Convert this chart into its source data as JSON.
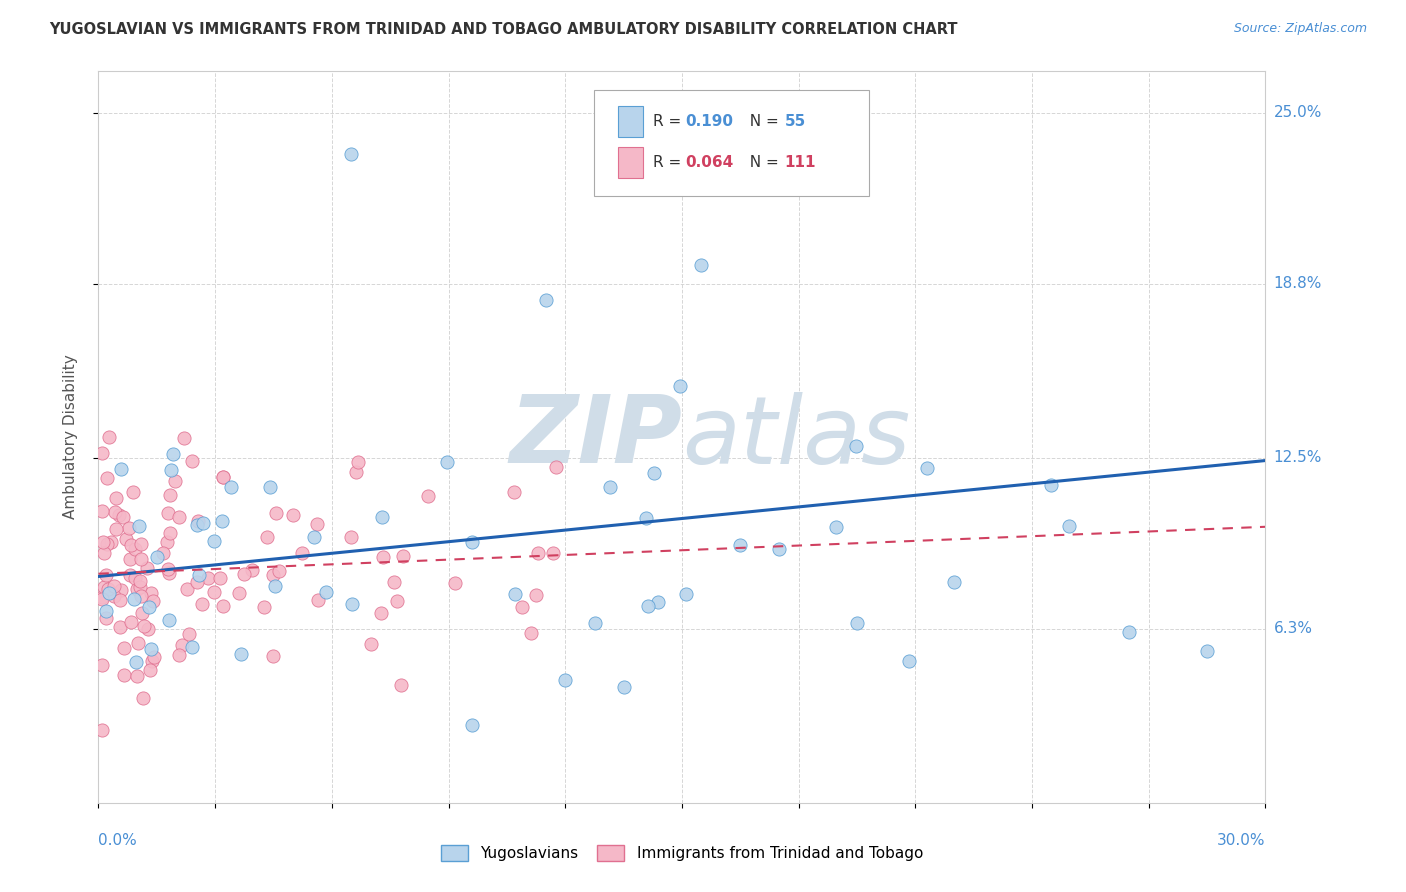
{
  "title": "YUGOSLAVIAN VS IMMIGRANTS FROM TRINIDAD AND TOBAGO AMBULATORY DISABILITY CORRELATION CHART",
  "source": "Source: ZipAtlas.com",
  "ylabel": "Ambulatory Disability",
  "xmin": 0.0,
  "xmax": 0.3,
  "ymin": 0.0,
  "ymax": 0.265,
  "R_blue": 0.19,
  "N_blue": 55,
  "R_pink": 0.064,
  "N_pink": 111,
  "blue_color": "#b8d4ec",
  "blue_edge_color": "#5a9fd4",
  "blue_line_color": "#2060b0",
  "pink_color": "#f5b8c8",
  "pink_edge_color": "#e07090",
  "pink_line_color": "#d04060",
  "watermark_zip": "ZIP",
  "watermark_atlas": "atlas",
  "watermark_color": "#d0dde8",
  "legend_label_blue": "Yugoslavians",
  "legend_label_pink": "Immigrants from Trinidad and Tobago",
  "ytick_vals": [
    0.063,
    0.125,
    0.188,
    0.25
  ],
  "ytick_labels": [
    "6.3%",
    "12.5%",
    "18.8%",
    "25.0%"
  ],
  "blue_trend_x": [
    0.0,
    0.3
  ],
  "blue_trend_y": [
    0.082,
    0.124
  ],
  "pink_trend_x": [
    0.0,
    0.3
  ],
  "pink_trend_y": [
    0.083,
    0.1
  ]
}
